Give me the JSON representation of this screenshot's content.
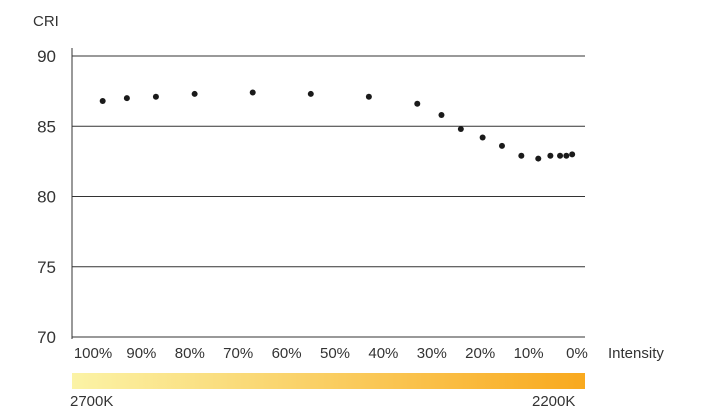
{
  "chart_data": {
    "type": "scatter",
    "ylabel": "CRI",
    "xlabel": "Intensity",
    "ylim": [
      70,
      90
    ],
    "yticks": [
      70,
      75,
      80,
      85,
      90
    ],
    "xlim": [
      100,
      0
    ],
    "xticks": [
      "100%",
      "90%",
      "80%",
      "70%",
      "60%",
      "50%",
      "40%",
      "30%",
      "20%",
      "10%",
      "0%"
    ],
    "grid": "horizontal",
    "marker_color": "#1a1a1a",
    "series": [
      {
        "points": [
          {
            "x": 98,
            "y": 86.8
          },
          {
            "x": 93,
            "y": 87.0
          },
          {
            "x": 87,
            "y": 87.1
          },
          {
            "x": 79,
            "y": 87.3
          },
          {
            "x": 67,
            "y": 87.4
          },
          {
            "x": 55,
            "y": 87.3
          },
          {
            "x": 43,
            "y": 87.1
          },
          {
            "x": 33,
            "y": 86.6
          },
          {
            "x": 28,
            "y": 85.8
          },
          {
            "x": 24,
            "y": 84.8
          },
          {
            "x": 19.5,
            "y": 84.2
          },
          {
            "x": 15.5,
            "y": 83.6
          },
          {
            "x": 11.5,
            "y": 82.9
          },
          {
            "x": 8,
            "y": 82.7
          },
          {
            "x": 5.5,
            "y": 82.9
          },
          {
            "x": 3.5,
            "y": 82.9
          },
          {
            "x": 2.2,
            "y": 82.9
          },
          {
            "x": 1,
            "y": 83.0
          }
        ]
      }
    ],
    "color_bar": {
      "start_label": "2700K",
      "end_label": "2200K",
      "start_color": "#fbf3a6",
      "end_color": "#f9a91e"
    }
  }
}
